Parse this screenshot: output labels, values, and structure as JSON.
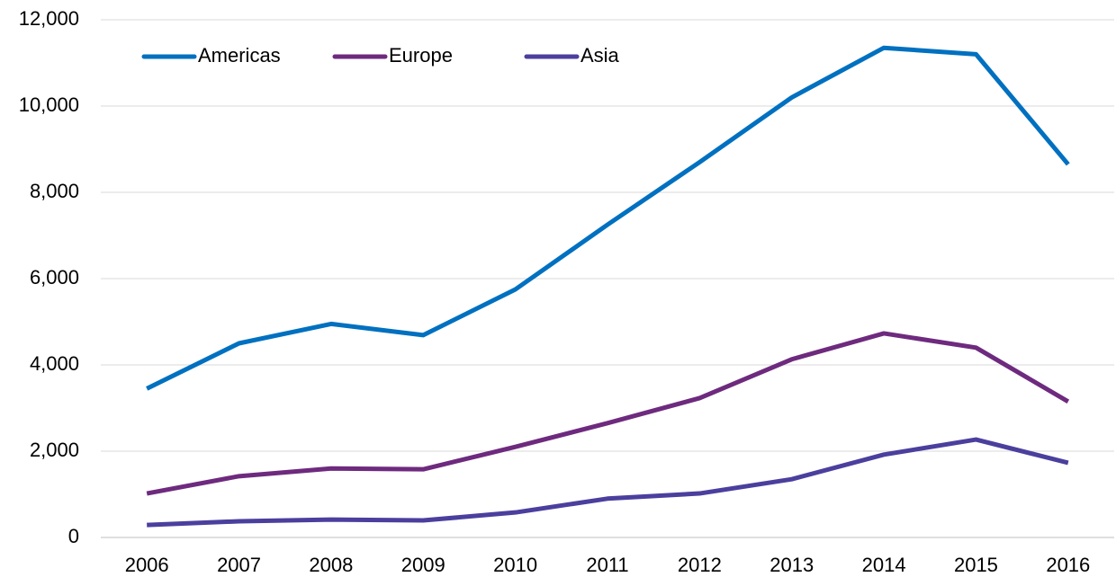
{
  "chart_data": {
    "type": "line",
    "categories": [
      "2006",
      "2007",
      "2008",
      "2009",
      "2010",
      "2011",
      "2012",
      "2013",
      "2014",
      "2015",
      "2016"
    ],
    "series": [
      {
        "name": "Americas",
        "color": "#0070C0",
        "values": [
          3450,
          4500,
          4950,
          4690,
          5750,
          7250,
          8700,
          10200,
          11350,
          11200,
          8650
        ]
      },
      {
        "name": "Europe",
        "color": "#6E2A7E",
        "values": [
          1020,
          1420,
          1600,
          1580,
          2100,
          2650,
          3230,
          4130,
          4730,
          4400,
          3150
        ]
      },
      {
        "name": "Asia",
        "color": "#4B3F9E",
        "values": [
          290,
          375,
          415,
          395,
          580,
          900,
          1020,
          1350,
          1920,
          2270,
          1730
        ]
      }
    ],
    "ylim": [
      0,
      12000
    ],
    "yticks": [
      0,
      {
        "value": 2000,
        "label": "2,000"
      },
      {
        "value": 4000,
        "label": "4,000"
      },
      {
        "value": 6000,
        "label": "6,000"
      },
      {
        "value": 8000,
        "label": "8,000"
      },
      {
        "value": 10000,
        "label": "10,000"
      },
      {
        "value": 12000,
        "label": "12,000"
      }
    ],
    "grid": true,
    "legend": "upper left"
  }
}
